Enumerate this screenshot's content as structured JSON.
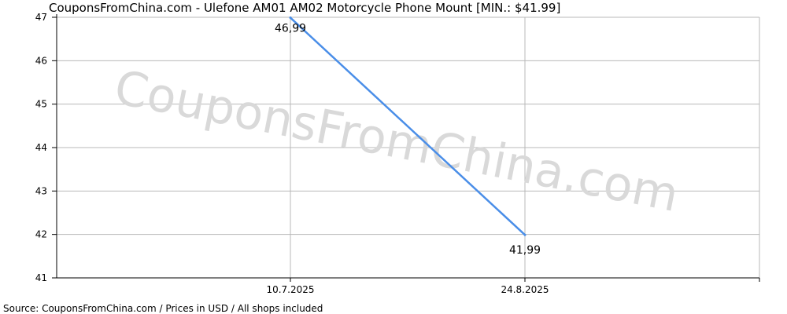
{
  "chart_data": {
    "type": "line",
    "title": "CouponsFromChina.com - Ulefone AM01 AM02 Motorcycle Phone Mount [MIN.: $41.99]",
    "x": [
      "10.7.2025",
      "24.8.2025"
    ],
    "series": [
      {
        "values": [
          46.99,
          41.99
        ],
        "labels": [
          "46,99",
          "41,99"
        ]
      }
    ],
    "ylim": [
      41,
      47
    ],
    "yticks": [
      "41",
      "42",
      "43",
      "44",
      "45",
      "46",
      "47"
    ],
    "xlabel": "",
    "ylabel": "",
    "grid": true,
    "line_color": "#4a8ee8",
    "watermark": "CouponsFromChina.com",
    "source": "Source: CouponsFromChina.com / Prices in USD / All shops included"
  }
}
